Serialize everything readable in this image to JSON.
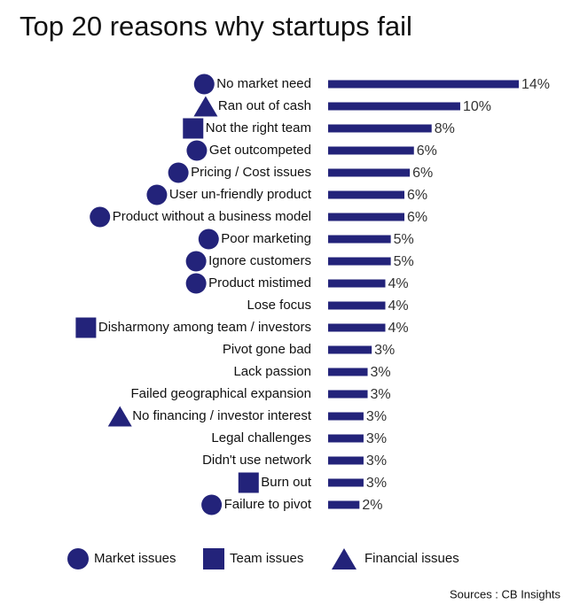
{
  "chart_data": {
    "type": "bar",
    "orientation": "horizontal",
    "title": "Top 20 reasons why startups fail",
    "color": "#23237a",
    "categories": [
      "No market need",
      "Ran out of cash",
      "Not the right team",
      "Get outcompeted",
      "Pricing / Cost issues",
      "User un-friendly product",
      "Product without a business model",
      "Poor marketing",
      "Ignore customers",
      "Product mistimed",
      "Lose focus",
      "Disharmony among team / investors",
      "Pivot gone bad",
      "Lack passion",
      "Failed geographical expansion",
      "No financing / investor interest",
      "Legal challenges",
      "Didn't use network",
      "Burn out",
      "Failure to pivot"
    ],
    "values": [
      14,
      9.7,
      7.6,
      6.3,
      6.0,
      5.6,
      5.6,
      4.6,
      4.6,
      4.2,
      4.2,
      4.2,
      3.2,
      2.9,
      2.9,
      2.6,
      2.6,
      2.6,
      2.6,
      2.3
    ],
    "value_labels": [
      "14%",
      "10%",
      "8%",
      "6%",
      "6%",
      "6%",
      "6%",
      "5%",
      "5%",
      "4%",
      "4%",
      "4%",
      "3%",
      "3%",
      "3%",
      "3%",
      "3%",
      "3%",
      "3%",
      "2%"
    ],
    "category_shapes": [
      "circle",
      "triangle",
      "square",
      "circle",
      "circle",
      "circle",
      "circle",
      "circle",
      "circle",
      "circle",
      null,
      "square",
      null,
      null,
      null,
      "triangle",
      null,
      null,
      "square",
      "circle"
    ],
    "legend": [
      {
        "label": "Market issues",
        "shape": "circle"
      },
      {
        "label": "Team issues",
        "shape": "square"
      },
      {
        "label": "Financial issues",
        "shape": "triangle"
      }
    ],
    "source": "Sources : CB Insights"
  }
}
